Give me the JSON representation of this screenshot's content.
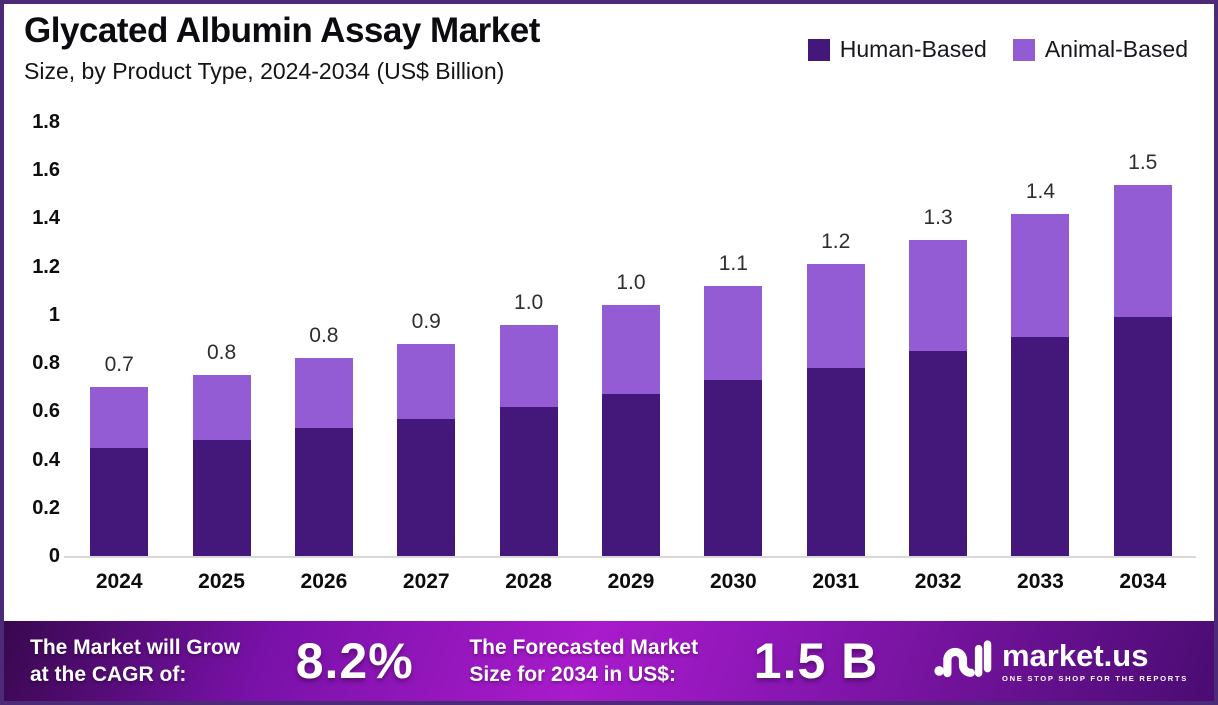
{
  "header": {
    "title": "Glycated Albumin Assay Market",
    "subtitle": "Size, by Product Type, 2024-2034 (US$ Billion)"
  },
  "legend": [
    {
      "label": "Human-Based",
      "color": "#44187a",
      "icon": "square-swatch"
    },
    {
      "label": "Animal-Based",
      "color": "#945cd4",
      "icon": "square-swatch"
    }
  ],
  "chart_data": {
    "type": "bar",
    "stacked": true,
    "title": "Glycated Albumin Assay Market Size, by Product Type, 2024-2034 (US$ Billion)",
    "categories": [
      "2024",
      "2025",
      "2026",
      "2027",
      "2028",
      "2029",
      "2030",
      "2031",
      "2032",
      "2033",
      "2034"
    ],
    "series": [
      {
        "name": "Human-Based",
        "color": "#44187a",
        "values": [
          0.45,
          0.48,
          0.53,
          0.57,
          0.62,
          0.67,
          0.73,
          0.78,
          0.85,
          0.91,
          0.99
        ]
      },
      {
        "name": "Animal-Based",
        "color": "#945cd4",
        "values": [
          0.25,
          0.27,
          0.29,
          0.31,
          0.34,
          0.37,
          0.39,
          0.43,
          0.46,
          0.51,
          0.55
        ]
      }
    ],
    "total_labels": [
      "0.7",
      "0.8",
      "0.8",
      "0.9",
      "1.0",
      "1.0",
      "1.1",
      "1.2",
      "1.3",
      "1.4",
      "1.5"
    ],
    "xlabel": "",
    "ylabel": "",
    "ylim": [
      0,
      1.8
    ],
    "yticks": [
      "1.8",
      "1.6",
      "1.4",
      "1.2",
      "1",
      "0.8",
      "0.6",
      "0.4",
      "0.2",
      "0"
    ],
    "grid": false,
    "legend_position": "top-right"
  },
  "footer": {
    "cagr_label_line1": "The Market will Grow",
    "cagr_label_line2": "at the CAGR of:",
    "cagr_value": "8.2%",
    "forecast_label_line1": "The Forecasted Market",
    "forecast_label_line2": "Size for 2034 in US$:",
    "forecast_value": "1.5 B",
    "brand": {
      "name": "market.us",
      "tagline": "ONE STOP SHOP FOR THE REPORTS"
    }
  },
  "colors": {
    "border": "#4c2a78",
    "human_based": "#44187a",
    "animal_based": "#945cd4",
    "banner_center": "#a91bcb",
    "banner_edge": "#38084f"
  }
}
